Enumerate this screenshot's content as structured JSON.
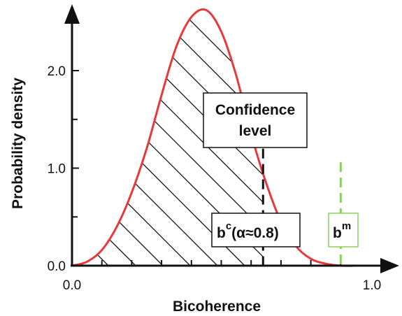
{
  "chart_data": {
    "type": "area",
    "xlabel": "Bicoherence",
    "ylabel": "Probability density",
    "xlim": [
      0.0,
      1.0
    ],
    "ylim": [
      0.0,
      2.6
    ],
    "x_tick_labels": [
      {
        "value": 0.0,
        "label": "0.0"
      },
      {
        "value": 1.0,
        "label": "1.0"
      }
    ],
    "x_minor_ticks": [
      0.1,
      0.2,
      0.3,
      0.4,
      0.5,
      0.6,
      0.7,
      0.8,
      0.9
    ],
    "y_tick_labels": [
      {
        "value": 0.0,
        "label": "0.0"
      },
      {
        "value": 1.0,
        "label": "1.0"
      },
      {
        "value": 2.0,
        "label": "2.0"
      }
    ],
    "y_minor_ticks": [
      0.5,
      1.5
    ],
    "series": [
      {
        "color": "#e8383b",
        "x": [
          0.0,
          0.05,
          0.1,
          0.15,
          0.2,
          0.25,
          0.3,
          0.35,
          0.4,
          0.45,
          0.5,
          0.55,
          0.6,
          0.65,
          0.7,
          0.75,
          0.8,
          0.85,
          0.9,
          0.95
        ],
        "y": [
          0.0,
          0.04,
          0.16,
          0.4,
          0.75,
          1.2,
          1.75,
          2.25,
          2.55,
          2.62,
          2.4,
          1.95,
          1.35,
          0.85,
          0.45,
          0.2,
          0.07,
          0.02,
          0.0,
          0.0
        ]
      }
    ],
    "shaded_region": {
      "from": 0.0,
      "to": 0.64,
      "pattern": "diagonal-hatch"
    },
    "markers": [
      {
        "id": "confidence",
        "x": 0.64,
        "y_top": 1.2,
        "color": "#111111",
        "style": "dashed",
        "label_main": "b",
        "label_sup": "c",
        "label_rest": "(α≈0.8)"
      },
      {
        "id": "measured",
        "x": 0.9,
        "y_top": 1.1,
        "color": "#8cd05a",
        "style": "dashed",
        "label_main": "b",
        "label_sup": "m",
        "label_rest": ""
      }
    ],
    "annotation": {
      "line1": "Confidence",
      "line2": "level"
    },
    "colors": {
      "curve": "#e8383b",
      "measured": "#8cd05a",
      "axis": "#111111"
    }
  }
}
